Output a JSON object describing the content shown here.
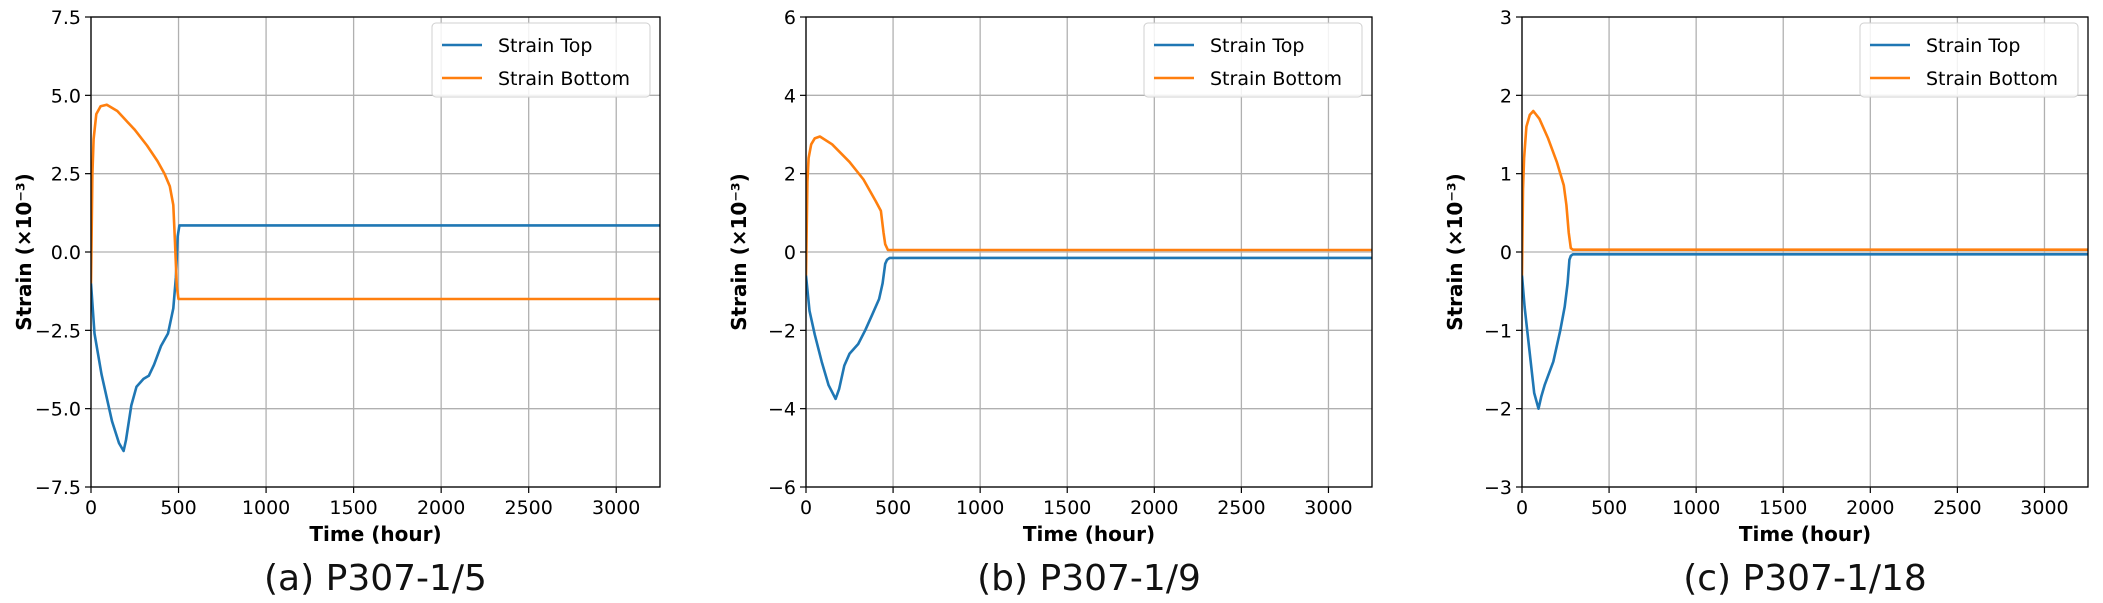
{
  "chart_data": [
    {
      "type": "line",
      "caption": "(a) P307-1/5",
      "xlabel": "Time (hour)",
      "ylabel": "Strain (×10⁻³)",
      "xlim": [
        0,
        3250
      ],
      "ylim": [
        -7.5,
        7.5
      ],
      "xticks": [
        0,
        500,
        1000,
        1500,
        2000,
        2500,
        3000
      ],
      "xtick_labels": [
        "0",
        "500",
        "1000",
        "1500",
        "2000",
        "2500",
        "3000"
      ],
      "yticks": [
        -7.5,
        -5.0,
        -2.5,
        0.0,
        2.5,
        5.0,
        7.5
      ],
      "ytick_labels": [
        "−7.5",
        "−5.0",
        "−2.5",
        "0.0",
        "2.5",
        "5.0",
        "7.5"
      ],
      "grid": true,
      "legend_position": "top-right",
      "series": [
        {
          "name": "Strain Top",
          "color": "#1f77b4",
          "x": [
            0,
            20,
            60,
            120,
            160,
            186,
            200,
            230,
            260,
            300,
            330,
            360,
            400,
            440,
            470,
            485,
            495,
            505,
            3250
          ],
          "y": [
            -1.0,
            -2.6,
            -3.9,
            -5.4,
            -6.1,
            -6.35,
            -6.0,
            -4.9,
            -4.3,
            -4.05,
            -3.95,
            -3.6,
            -3.0,
            -2.6,
            -1.8,
            -0.8,
            0.5,
            0.85,
            0.85
          ]
        },
        {
          "name": "Strain Bottom",
          "color": "#ff7f0e",
          "x": [
            0,
            8,
            15,
            30,
            55,
            90,
            150,
            200,
            250,
            320,
            380,
            420,
            450,
            470,
            480,
            490,
            500,
            3250
          ],
          "y": [
            -1.0,
            2.5,
            3.6,
            4.4,
            4.65,
            4.7,
            4.5,
            4.2,
            3.9,
            3.4,
            2.9,
            2.5,
            2.1,
            1.5,
            0.3,
            -1.1,
            -1.5,
            -1.5
          ]
        }
      ]
    },
    {
      "type": "line",
      "caption": "(b) P307-1/9",
      "xlabel": "Time (hour)",
      "ylabel": "Strain (×10⁻³)",
      "xlim": [
        0,
        3250
      ],
      "ylim": [
        -6,
        6
      ],
      "xticks": [
        0,
        500,
        1000,
        1500,
        2000,
        2500,
        3000
      ],
      "xtick_labels": [
        "0",
        "500",
        "1000",
        "1500",
        "2000",
        "2500",
        "3000"
      ],
      "yticks": [
        -6,
        -4,
        -2,
        0,
        2,
        4,
        6
      ],
      "ytick_labels": [
        "−6",
        "−4",
        "−2",
        "0",
        "2",
        "4",
        "6"
      ],
      "grid": true,
      "legend_position": "top-right",
      "series": [
        {
          "name": "Strain Top",
          "color": "#1f77b4",
          "x": [
            0,
            20,
            50,
            90,
            130,
            170,
            190,
            220,
            250,
            300,
            340,
            380,
            420,
            440,
            455,
            465,
            480,
            3250
          ],
          "y": [
            -0.6,
            -1.5,
            -2.1,
            -2.8,
            -3.4,
            -3.75,
            -3.5,
            -2.9,
            -2.6,
            -2.35,
            -2.0,
            -1.6,
            -1.2,
            -0.8,
            -0.3,
            -0.2,
            -0.15,
            -0.15
          ]
        },
        {
          "name": "Strain Bottom",
          "color": "#ff7f0e",
          "x": [
            0,
            8,
            15,
            30,
            50,
            80,
            150,
            250,
            330,
            400,
            430,
            445,
            455,
            470,
            3250
          ],
          "y": [
            -0.6,
            1.8,
            2.4,
            2.75,
            2.9,
            2.95,
            2.75,
            2.3,
            1.85,
            1.3,
            1.05,
            0.5,
            0.2,
            0.05,
            0.05
          ]
        }
      ]
    },
    {
      "type": "line",
      "caption": "(c) P307-1/18",
      "xlabel": "Time (hour)",
      "ylabel": "Strain (×10⁻³)",
      "xlim": [
        0,
        3250
      ],
      "ylim": [
        -3,
        3
      ],
      "xticks": [
        0,
        500,
        1000,
        1500,
        2000,
        2500,
        3000
      ],
      "xtick_labels": [
        "0",
        "500",
        "1000",
        "1500",
        "2000",
        "2500",
        "3000"
      ],
      "yticks": [
        -3,
        -2,
        -1,
        0,
        1,
        2,
        3
      ],
      "ytick_labels": [
        "−3",
        "−2",
        "−1",
        "0",
        "1",
        "2",
        "3"
      ],
      "grid": true,
      "legend_position": "top-right",
      "series": [
        {
          "name": "Strain Top",
          "color": "#1f77b4",
          "x": [
            0,
            15,
            30,
            50,
            70,
            95,
            110,
            130,
            180,
            220,
            245,
            262,
            272,
            280,
            292,
            3250
          ],
          "y": [
            -0.3,
            -0.7,
            -1.0,
            -1.4,
            -1.8,
            -2.0,
            -1.85,
            -1.7,
            -1.4,
            -1.0,
            -0.7,
            -0.4,
            -0.1,
            -0.05,
            -0.03,
            -0.03
          ]
        },
        {
          "name": "Strain Bottom",
          "color": "#ff7f0e",
          "x": [
            0,
            6,
            12,
            25,
            45,
            65,
            100,
            150,
            200,
            240,
            255,
            268,
            280,
            292,
            3250
          ],
          "y": [
            -0.3,
            0.8,
            1.2,
            1.6,
            1.75,
            1.8,
            1.7,
            1.45,
            1.15,
            0.85,
            0.6,
            0.25,
            0.05,
            0.03,
            0.03
          ]
        }
      ]
    }
  ]
}
